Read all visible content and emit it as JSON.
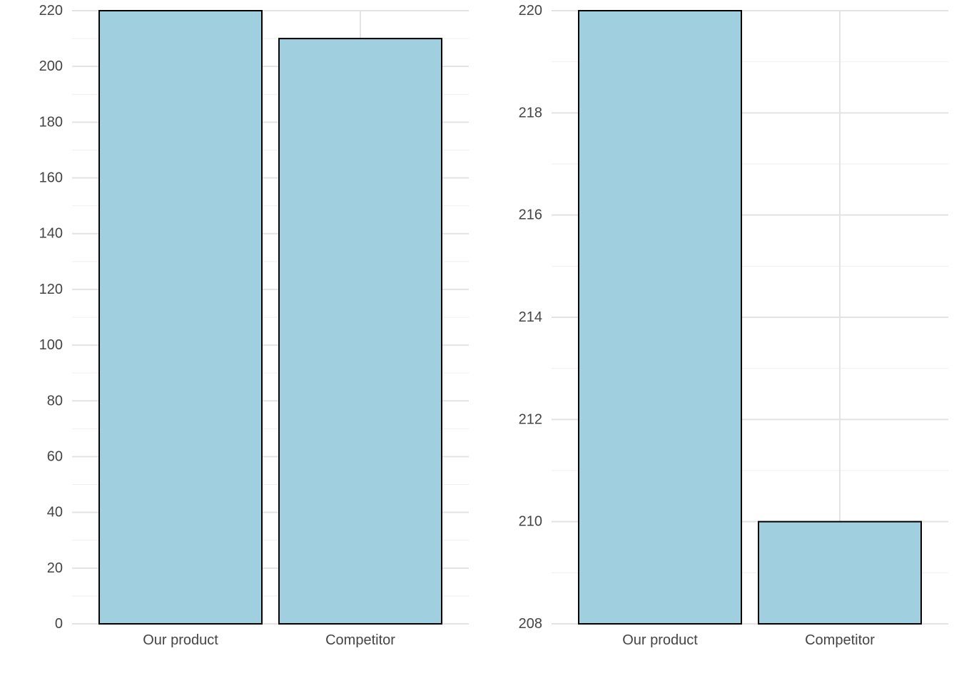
{
  "chart_data": [
    {
      "type": "bar",
      "title": "",
      "xlabel": "",
      "ylabel": "",
      "categories": [
        "Our product",
        "Competitor"
      ],
      "values": [
        220,
        210
      ],
      "ylim": [
        0,
        220
      ],
      "yticks": [
        0,
        20,
        40,
        60,
        80,
        100,
        120,
        140,
        160,
        180,
        200,
        220
      ],
      "ytick_labels": [
        "0",
        "20",
        "40",
        "60",
        "80",
        "100",
        "120",
        "140",
        "160",
        "180",
        "200",
        "220"
      ],
      "grid": true,
      "legend": "none"
    },
    {
      "type": "bar",
      "title": "",
      "xlabel": "",
      "ylabel": "",
      "categories": [
        "Our product",
        "Competitor"
      ],
      "values": [
        220,
        210
      ],
      "ylim": [
        208,
        220
      ],
      "yticks": [
        208,
        210,
        212,
        214,
        216,
        218,
        220
      ],
      "ytick_labels": [
        "208",
        "210",
        "212",
        "214",
        "216",
        "218",
        "220"
      ],
      "grid": true,
      "legend": "none"
    }
  ],
  "colors": {
    "bar_fill": "#a0cfe0",
    "bar_stroke": "#000000",
    "grid_major": "#e3e3e3",
    "grid_minor": "#efefef",
    "tick_text": "#444444",
    "background": "#ffffff"
  }
}
